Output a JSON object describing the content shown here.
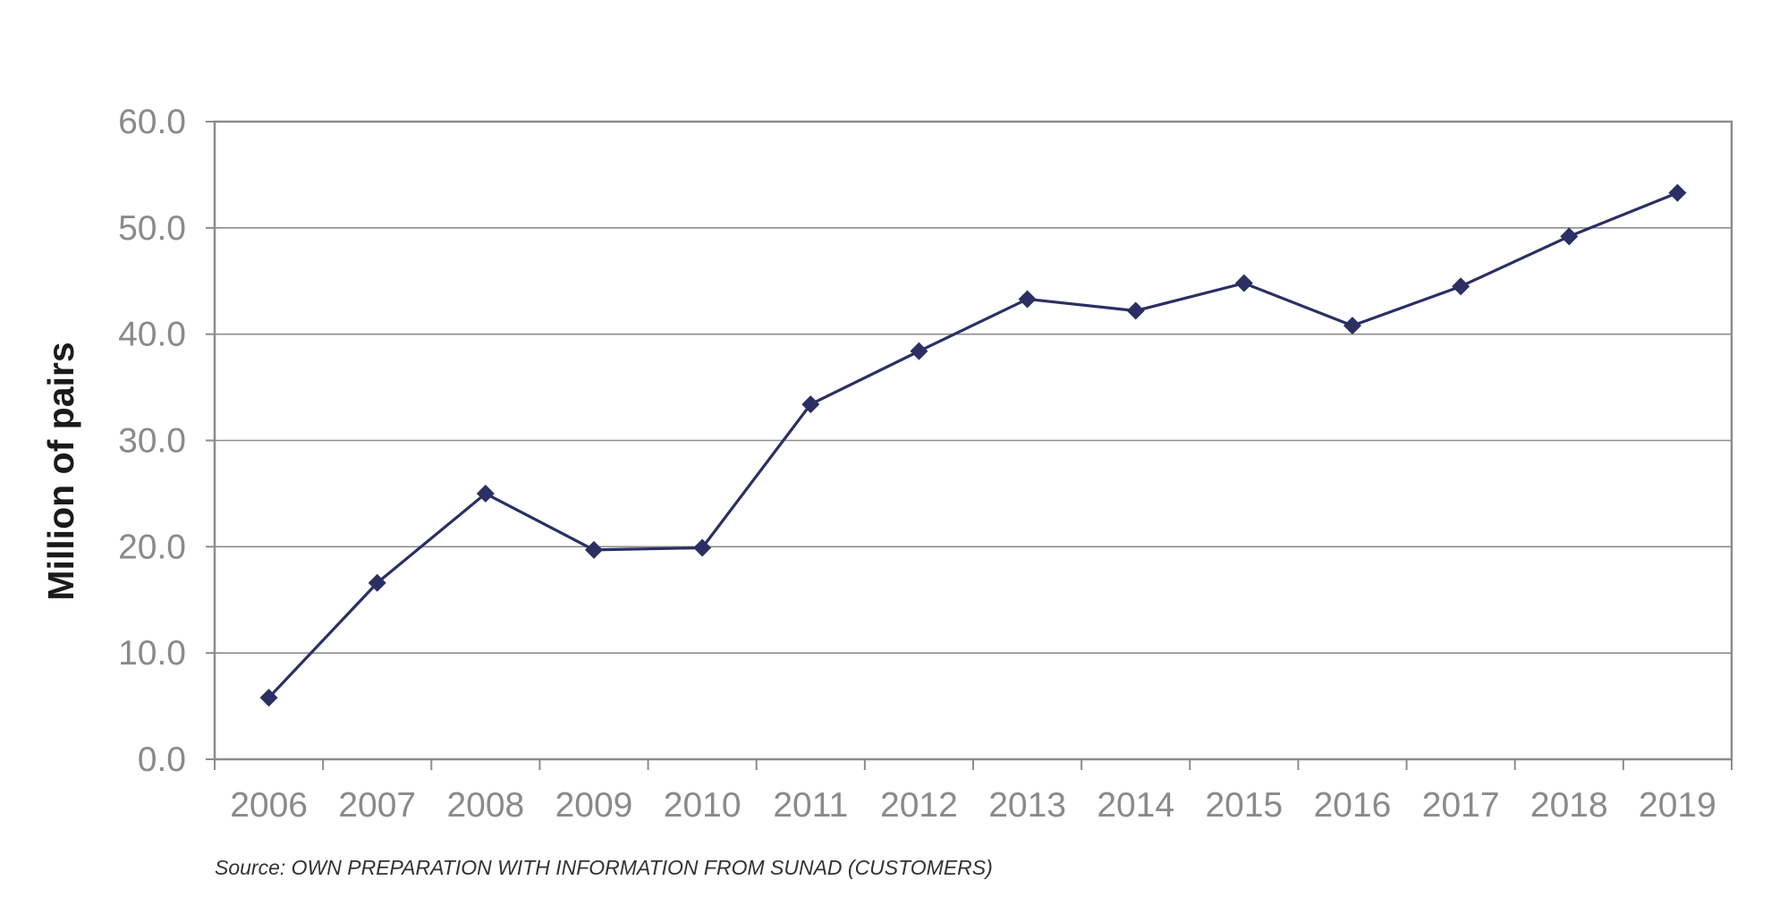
{
  "chart_data": {
    "type": "line",
    "title": "",
    "xlabel": "",
    "ylabel": "Million of pairs",
    "ylim": [
      0,
      60
    ],
    "yticks": [
      "0.0",
      "10.0",
      "20.0",
      "30.0",
      "40.0",
      "50.0",
      "60.0"
    ],
    "categories": [
      "2006",
      "2007",
      "2008",
      "2009",
      "2010",
      "2011",
      "2012",
      "2013",
      "2014",
      "2015",
      "2016",
      "2017",
      "2018",
      "2019"
    ],
    "series": [
      {
        "values": [
          5.8,
          16.6,
          25.0,
          19.7,
          19.9,
          33.4,
          38.4,
          43.3,
          42.2,
          44.8,
          40.8,
          44.5,
          49.2,
          53.3
        ]
      }
    ],
    "grid": true,
    "legend": "none",
    "colors": {
      "line": "#2b2f63",
      "marker": "#2b2f63",
      "grid": "#8c8c8c",
      "axis": "#8c8c8c"
    },
    "marker": "diamond"
  },
  "source_note": "Source: OWN PREPARATION WITH INFORMATION FROM SUNAD (CUSTOMERS)"
}
